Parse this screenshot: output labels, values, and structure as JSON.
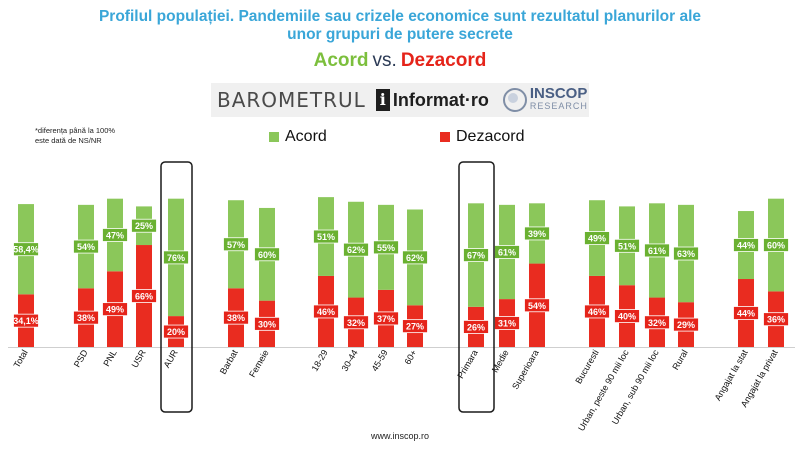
{
  "title": {
    "line1": "Profilul populației. Pandemiile sau crizele economice sunt rezultatul planurilor ale",
    "line2": "unor grupuri de putere secrete"
  },
  "subtitle": {
    "acord": "Acord",
    "vs": "vs.",
    "dezacord": "Dezacord"
  },
  "logos": {
    "barometrul": "BAROMETRUL",
    "informat": "Informat",
    "informat_suffix": "ro",
    "inscop": "INSCOP",
    "inscop_sub": "RESEARCH"
  },
  "note": {
    "line1": "*diferența până la 100%",
    "line2": "este dată de NS/NR"
  },
  "legend": {
    "acord": "Acord",
    "dezacord": "Dezacord"
  },
  "footer": "www.inscop.ro",
  "colors": {
    "acord": "#8bc75a",
    "dezacord": "#e92c20",
    "label_acord_bg": "#6ab131",
    "label_dezacord_bg": "#e5241a",
    "title": "#3aa6d8"
  },
  "chart_data": {
    "type": "bar",
    "stacked": true,
    "categories": [
      "Total",
      "PSD",
      "PNL",
      "USR",
      "AUR",
      "Barbat",
      "Femeie",
      "18-29",
      "30-44",
      "45-59",
      "60+",
      "Primara",
      "Medie",
      "Superioara",
      "Bucuresti",
      "Urban, peste 90 mii loc",
      "Urban, sub 90 mii loc",
      "Rural",
      "Angajat la stat",
      "Angajat la privat"
    ],
    "highlighted": [
      "AUR",
      "Primara"
    ],
    "series": [
      {
        "name": "Dezacord",
        "values": [
          34.1,
          38,
          49,
          66,
          20,
          38,
          30,
          46,
          32,
          37,
          27,
          26,
          31,
          54,
          46,
          40,
          32,
          29,
          44,
          36
        ],
        "labels": [
          "34,1%",
          "38%",
          "49%",
          "66%",
          "20%",
          "38%",
          "30%",
          "46%",
          "32%",
          "37%",
          "27%",
          "26%",
          "31%",
          "54%",
          "46%",
          "40%",
          "32%",
          "29%",
          "44%",
          "36%"
        ]
      },
      {
        "name": "Acord",
        "values": [
          58.4,
          54,
          47,
          25,
          76,
          57,
          60,
          51,
          62,
          55,
          62,
          67,
          61,
          39,
          49,
          51,
          61,
          63,
          44,
          60
        ],
        "labels": [
          "58,4%",
          "54%",
          "47%",
          "25%",
          "76%",
          "57%",
          "60%",
          "51%",
          "62%",
          "55%",
          "62%",
          "67%",
          "61%",
          "39%",
          "49%",
          "51%",
          "61%",
          "63%",
          "44%",
          "60%"
        ]
      }
    ],
    "ylim": [
      0,
      100
    ],
    "grid": false,
    "legend_position": "top"
  }
}
